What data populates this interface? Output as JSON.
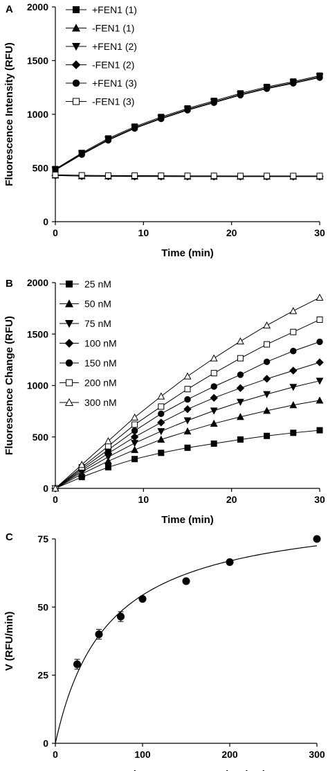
{
  "chart_data": [
    {
      "panel": "A",
      "type": "line",
      "xlabel": "Time (min)",
      "ylabel": "Fluorescence Intensity (RFU)",
      "xlim": [
        0,
        30
      ],
      "ylim": [
        0,
        2000
      ],
      "xticks": [
        0,
        10,
        20,
        30
      ],
      "yticks": [
        0,
        500,
        1000,
        1500,
        2000
      ],
      "x": [
        0,
        3,
        6,
        9,
        12,
        15,
        18,
        21,
        24,
        27,
        30
      ],
      "legend_position": "top-left",
      "series": [
        {
          "name": "+FEN1 (1)",
          "marker": "square-filled",
          "values": [
            490,
            640,
            775,
            885,
            975,
            1055,
            1125,
            1195,
            1255,
            1305,
            1360
          ]
        },
        {
          "name": "-FEN1 (1)",
          "marker": "triangle-up-filled",
          "values": [
            432,
            425,
            423,
            422,
            422,
            421,
            421,
            421,
            421,
            421,
            421
          ]
        },
        {
          "name": "+FEN1 (2)",
          "marker": "triangle-down-filled",
          "values": [
            485,
            632,
            765,
            875,
            965,
            1045,
            1115,
            1185,
            1245,
            1295,
            1350
          ]
        },
        {
          "name": "-FEN1 (2)",
          "marker": "diamond-filled",
          "values": [
            430,
            424,
            422,
            421,
            421,
            420,
            420,
            420,
            420,
            420,
            420
          ]
        },
        {
          "name": "+FEN1 (3)",
          "marker": "circle-filled",
          "values": [
            480,
            625,
            758,
            868,
            958,
            1038,
            1108,
            1178,
            1238,
            1288,
            1342
          ]
        },
        {
          "name": "-FEN1 (3)",
          "marker": "square-open",
          "values": [
            436,
            432,
            430,
            429,
            428,
            427,
            427,
            426,
            426,
            426,
            426
          ]
        }
      ]
    },
    {
      "panel": "B",
      "type": "line",
      "xlabel": "Time (min)",
      "ylabel": "Fluorescence Change (RFU)",
      "xlim": [
        0,
        30
      ],
      "ylim": [
        0,
        2000
      ],
      "xticks": [
        0,
        10,
        20,
        30
      ],
      "yticks": [
        0,
        500,
        1000,
        1500,
        2000
      ],
      "x": [
        0,
        3,
        6,
        9,
        12,
        15,
        18,
        21,
        24,
        27,
        30
      ],
      "legend_position": "top-left",
      "series": [
        {
          "name": "25 nM",
          "marker": "square-filled",
          "values": [
            0,
            110,
            205,
            285,
            345,
            395,
            435,
            475,
            510,
            540,
            565
          ]
        },
        {
          "name": "50 nM",
          "marker": "triangle-up-filled",
          "values": [
            0,
            140,
            265,
            375,
            475,
            555,
            630,
            695,
            755,
            810,
            855
          ]
        },
        {
          "name": "75 nM",
          "marker": "triangle-down-filled",
          "values": [
            0,
            160,
            305,
            440,
            555,
            660,
            755,
            840,
            915,
            985,
            1045
          ]
        },
        {
          "name": "100 nM",
          "marker": "diamond-filled",
          "values": [
            0,
            175,
            340,
            500,
            640,
            770,
            880,
            975,
            1065,
            1145,
            1225
          ]
        },
        {
          "name": "150 nM",
          "marker": "circle-filled",
          "values": [
            0,
            190,
            375,
            560,
            725,
            865,
            990,
            1105,
            1230,
            1335,
            1425
          ]
        },
        {
          "name": "200 nM",
          "marker": "square-open",
          "values": [
            0,
            205,
            410,
            620,
            795,
            965,
            1120,
            1265,
            1400,
            1520,
            1640
          ]
        },
        {
          "name": "300 nM",
          "marker": "triangle-up-open",
          "values": [
            0,
            230,
            460,
            690,
            895,
            1090,
            1265,
            1430,
            1585,
            1725,
            1855
          ]
        }
      ]
    },
    {
      "panel": "C",
      "type": "scatter",
      "xlabel": "Substrate Concentration (nM)",
      "ylabel": "V (RFU/min)",
      "xlim": [
        0,
        300
      ],
      "ylim": [
        0,
        75
      ],
      "xticks": [
        0,
        100,
        200,
        300
      ],
      "yticks": [
        0,
        25,
        50,
        75
      ],
      "points": [
        {
          "x": 25,
          "y": 29,
          "err": 1.8
        },
        {
          "x": 50,
          "y": 40,
          "err": 1.8
        },
        {
          "x": 75,
          "y": 46.5,
          "err": 1.8
        },
        {
          "x": 100,
          "y": 53,
          "err": 0.8
        },
        {
          "x": 150,
          "y": 59.5,
          "err": 0.6
        },
        {
          "x": 200,
          "y": 66.5,
          "err": 0.6
        },
        {
          "x": 300,
          "y": 75,
          "err": 0.6
        }
      ],
      "fit": {
        "model": "michaelis-menten",
        "vmax": 87,
        "km": 60
      }
    }
  ]
}
